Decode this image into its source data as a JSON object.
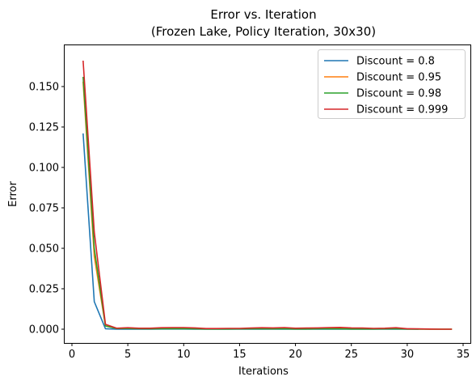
{
  "chart_data": {
    "type": "line",
    "title": "Error vs. Iteration",
    "subtitle": "(Frozen Lake, Policy Iteration, 30x30)",
    "xlabel": "Iterations",
    "ylabel": "Error",
    "xlim": [
      -0.65,
      35.65
    ],
    "ylim": [
      -0.0085,
      0.1755
    ],
    "xticks": [
      0,
      5,
      10,
      15,
      20,
      25,
      30,
      35
    ],
    "yticks": [
      0.0,
      0.025,
      0.05,
      0.075,
      0.1,
      0.125,
      0.15
    ],
    "ytick_labels": [
      "0.000",
      "0.025",
      "0.050",
      "0.075",
      "0.100",
      "0.125",
      "0.150"
    ],
    "grid": false,
    "legend_position": "top-right",
    "series": [
      {
        "name": "Discount = 0.8",
        "color": "#1f77b4",
        "x": [
          1,
          2,
          3,
          4,
          5,
          6,
          7,
          8,
          9,
          10,
          11,
          12,
          13,
          14,
          15,
          16,
          17,
          18,
          19,
          20,
          21,
          22,
          23,
          24,
          25,
          26,
          27,
          28,
          29,
          30,
          31
        ],
        "y": [
          0.121,
          0.017,
          0.0003,
          0.0,
          0.0001,
          0.0,
          0.0,
          0.0001,
          0.0001,
          0.0001,
          0.0,
          0.0,
          0.0,
          0.0,
          0.0,
          0.0001,
          0.0,
          0.0,
          0.0,
          0.0,
          0.0,
          0.0,
          0.0,
          0.0,
          0.0,
          0.0,
          0.0,
          0.0,
          0.0,
          0.0,
          0.0
        ]
      },
      {
        "name": "Discount = 0.95",
        "color": "#ff7f0e",
        "x": [
          1,
          2,
          3,
          4,
          5,
          6,
          7,
          8,
          9,
          10,
          11,
          12,
          13,
          14,
          15,
          16,
          17,
          18,
          19,
          20,
          21,
          22,
          23,
          24,
          25,
          26,
          27,
          28,
          29,
          30,
          31,
          32,
          33,
          34
        ],
        "y": [
          0.153,
          0.045,
          0.002,
          0.0005,
          0.0008,
          0.0005,
          0.0005,
          0.0006,
          0.0006,
          0.0006,
          0.0004,
          0.0002,
          0.0002,
          0.0002,
          0.0003,
          0.0004,
          0.0004,
          0.0003,
          0.0005,
          0.0003,
          0.0004,
          0.0004,
          0.0005,
          0.0006,
          0.0004,
          0.0003,
          0.0002,
          0.0003,
          0.0005,
          0.0001,
          0.0001,
          0.0,
          0.0,
          0.0
        ]
      },
      {
        "name": "Discount = 0.98",
        "color": "#2ca02c",
        "x": [
          1,
          2,
          3,
          4,
          5,
          6,
          7,
          8,
          9,
          10,
          11,
          12,
          13,
          14,
          15,
          16,
          17,
          18,
          19,
          20,
          21,
          22,
          23,
          24,
          25,
          26,
          27,
          28,
          29,
          30,
          31,
          32,
          33,
          34
        ],
        "y": [
          0.156,
          0.05,
          0.002,
          0.0004,
          0.0004,
          0.0003,
          0.0002,
          0.0003,
          0.0003,
          0.0003,
          0.0002,
          0.0001,
          0.0001,
          0.0001,
          0.0002,
          0.0002,
          0.0002,
          0.0002,
          0.0002,
          0.0001,
          0.0001,
          0.0002,
          0.0002,
          0.0002,
          0.0001,
          0.0001,
          0.0001,
          0.0002,
          0.0002,
          0.0001,
          0.0,
          0.0,
          0.0,
          0.0
        ]
      },
      {
        "name": "Discount = 0.999",
        "color": "#d62728",
        "x": [
          1,
          2,
          3,
          4,
          5,
          6,
          7,
          8,
          9,
          10,
          11,
          12,
          13,
          14,
          15,
          16,
          17,
          18,
          19,
          20,
          21,
          22,
          23,
          24,
          25,
          26,
          27,
          28,
          29,
          30,
          31,
          32,
          33,
          34
        ],
        "y": [
          0.166,
          0.06,
          0.003,
          0.0006,
          0.0009,
          0.0006,
          0.0006,
          0.0009,
          0.001,
          0.001,
          0.0008,
          0.0004,
          0.0004,
          0.0005,
          0.0005,
          0.0007,
          0.0009,
          0.0008,
          0.001,
          0.0006,
          0.0007,
          0.0008,
          0.001,
          0.0011,
          0.0008,
          0.0007,
          0.0005,
          0.0006,
          0.0009,
          0.0003,
          0.0002,
          0.0001,
          0.0,
          0.0
        ]
      }
    ]
  }
}
